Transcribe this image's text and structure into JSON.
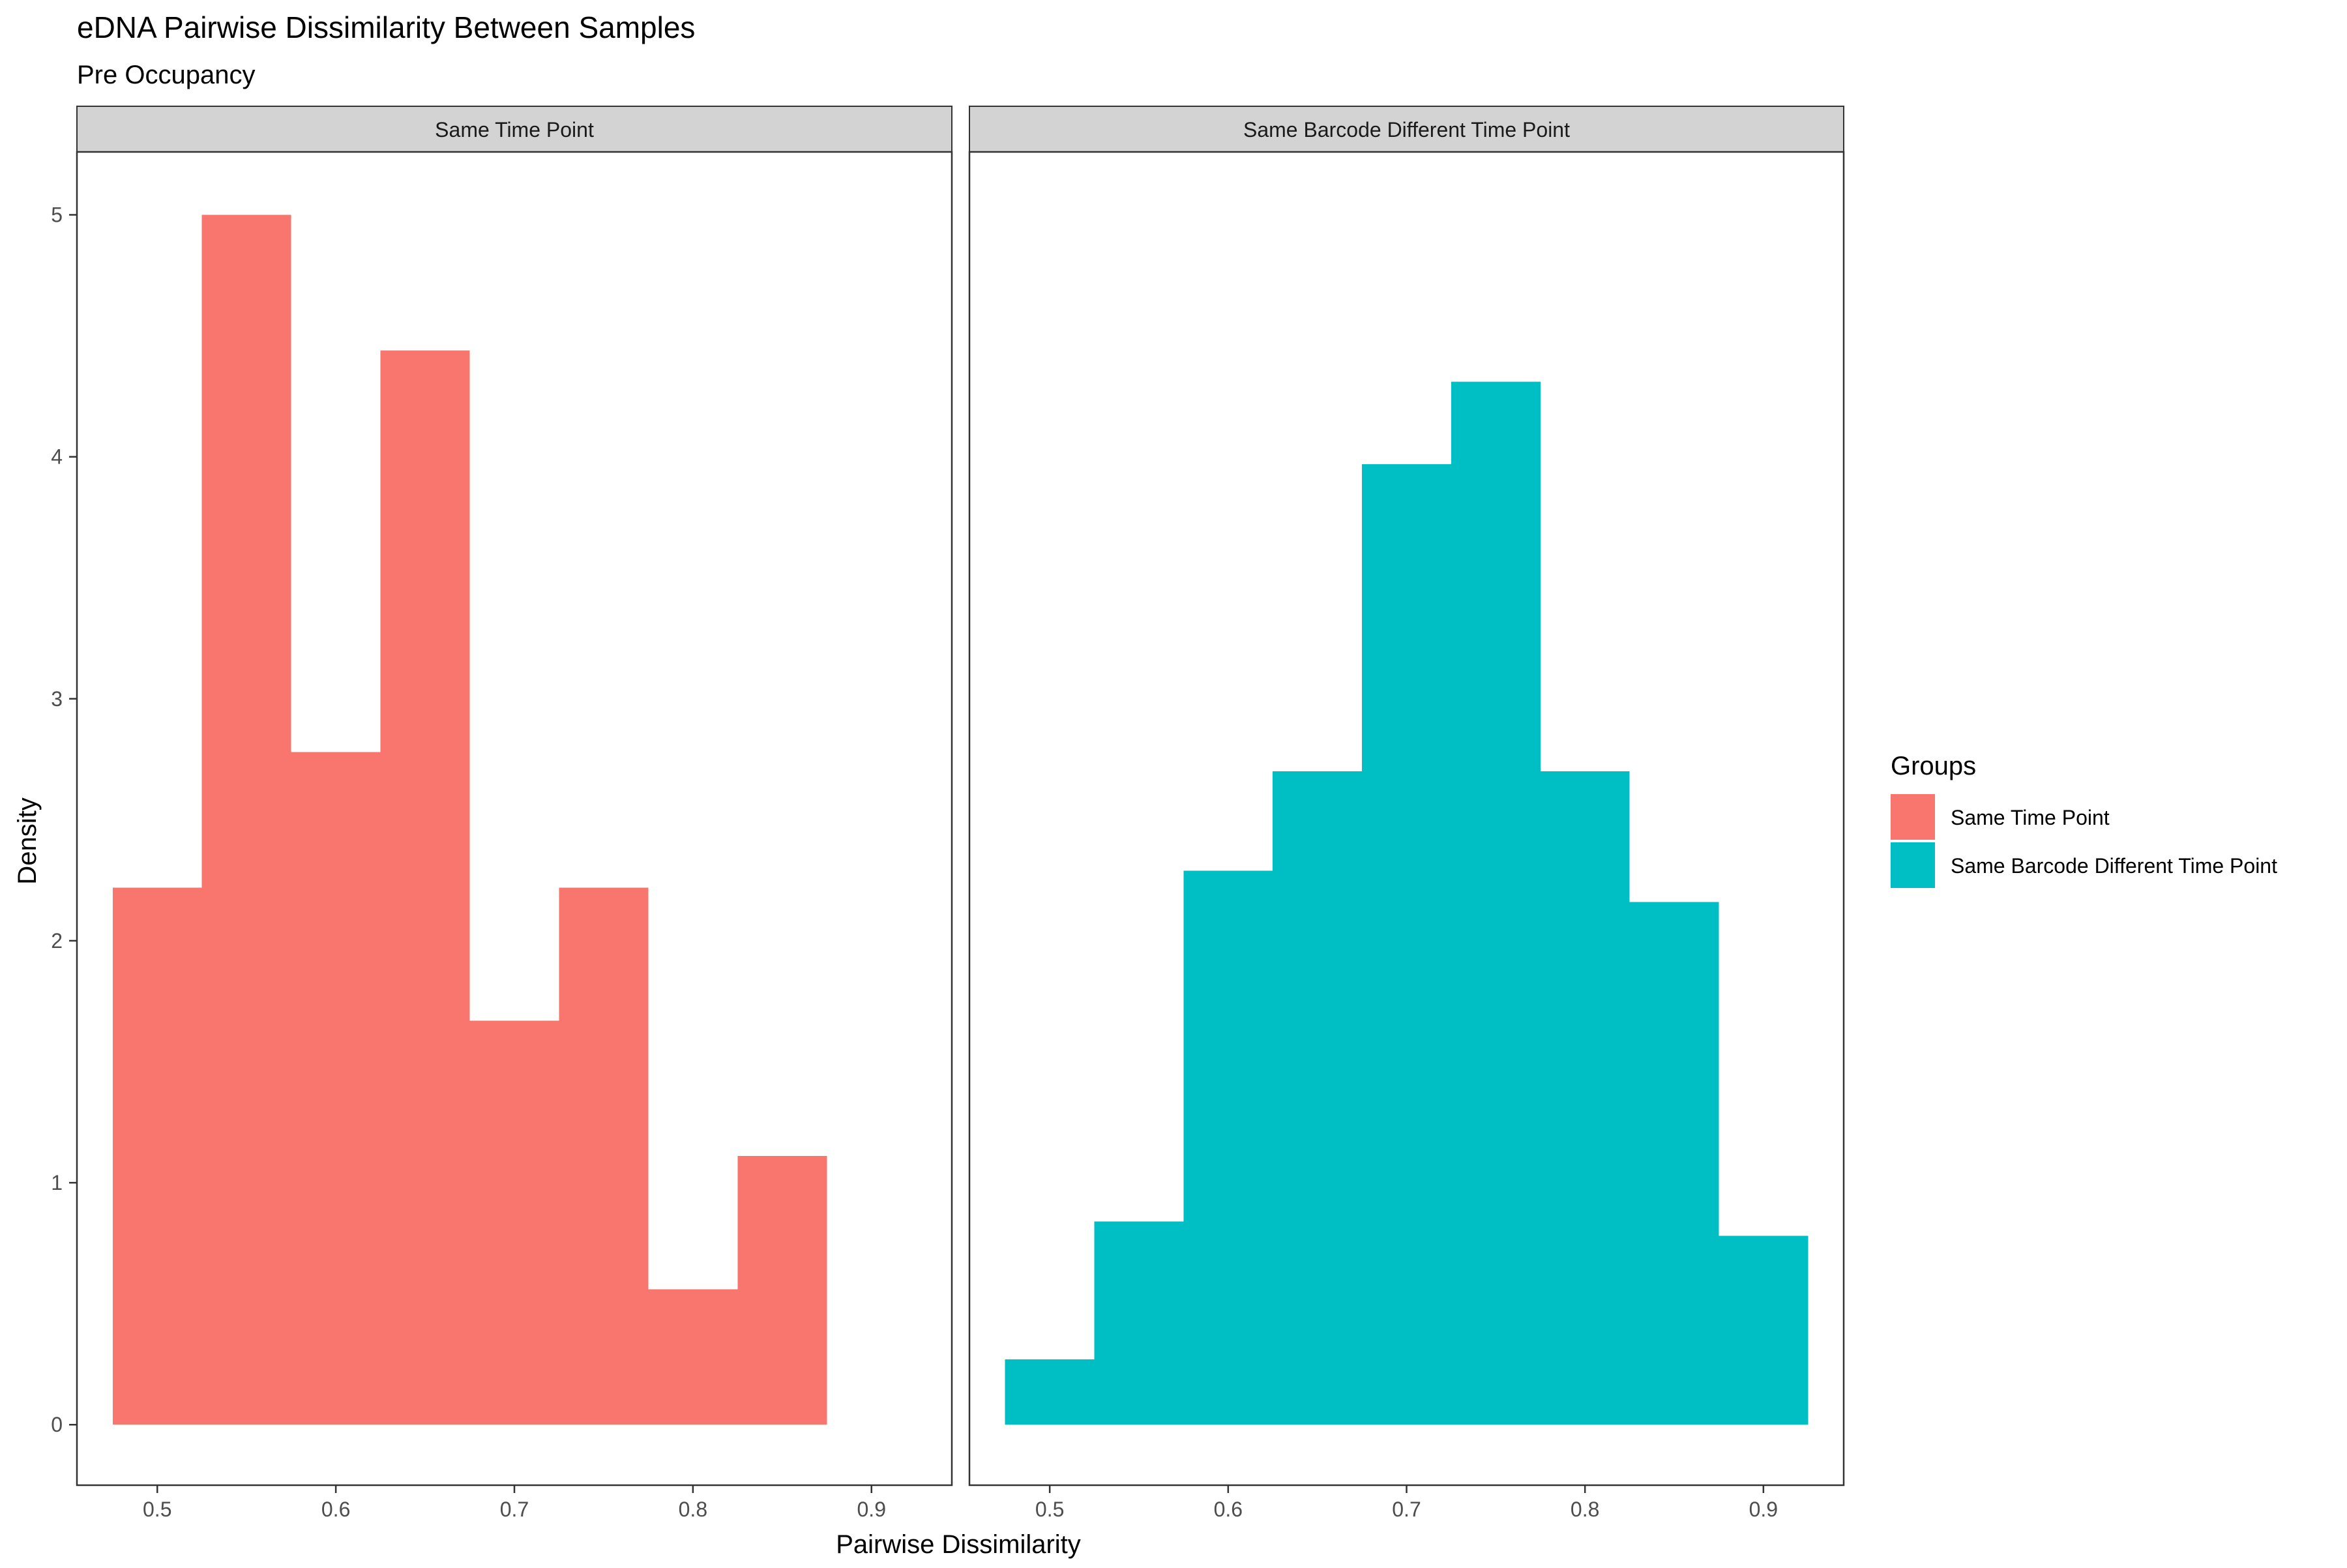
{
  "chart_data": {
    "type": "bar",
    "title": "eDNA Pairwise Dissimilarity Between Samples",
    "subtitle": "Pre Occupancy",
    "xlabel": "Pairwise Dissimilarity",
    "ylabel": "Density",
    "xlim": [
      0.455,
      0.945
    ],
    "ylim": [
      -0.25,
      5.26
    ],
    "x_ticks": [
      0.5,
      0.6,
      0.7,
      0.8,
      0.9
    ],
    "x_tick_labels": [
      "0.5",
      "0.6",
      "0.7",
      "0.8",
      "0.9"
    ],
    "y_ticks": [
      0,
      1,
      2,
      3,
      4,
      5
    ],
    "y_tick_labels": [
      "0",
      "1",
      "2",
      "3",
      "4",
      "5"
    ],
    "bin_width": 0.05,
    "grid": false,
    "legend": {
      "title": "Groups",
      "position": "right",
      "entries": [
        "Same Time Point",
        "Same Barcode Different Time Point"
      ]
    },
    "colors": {
      "Same Time Point": "#F8766D",
      "Same Barcode Different Time Point": "#00BFC4"
    },
    "panels": [
      {
        "strip_label": "Same Time Point",
        "group": "Same Time Point",
        "bins": [
          {
            "x": 0.5,
            "density": 2.22
          },
          {
            "x": 0.55,
            "density": 5.0
          },
          {
            "x": 0.6,
            "density": 2.78
          },
          {
            "x": 0.65,
            "density": 4.44
          },
          {
            "x": 0.7,
            "density": 1.67
          },
          {
            "x": 0.75,
            "density": 2.22
          },
          {
            "x": 0.8,
            "density": 0.56
          },
          {
            "x": 0.85,
            "density": 1.11
          }
        ]
      },
      {
        "strip_label": "Same Barcode Different Time Point",
        "group": "Same Barcode Different Time Point",
        "bins": [
          {
            "x": 0.5,
            "density": 0.27
          },
          {
            "x": 0.55,
            "density": 0.84
          },
          {
            "x": 0.6,
            "density": 2.29
          },
          {
            "x": 0.65,
            "density": 2.7
          },
          {
            "x": 0.7,
            "density": 3.97
          },
          {
            "x": 0.75,
            "density": 4.31
          },
          {
            "x": 0.8,
            "density": 2.7
          },
          {
            "x": 0.85,
            "density": 2.16
          },
          {
            "x": 0.9,
            "density": 0.78
          }
        ]
      }
    ]
  }
}
